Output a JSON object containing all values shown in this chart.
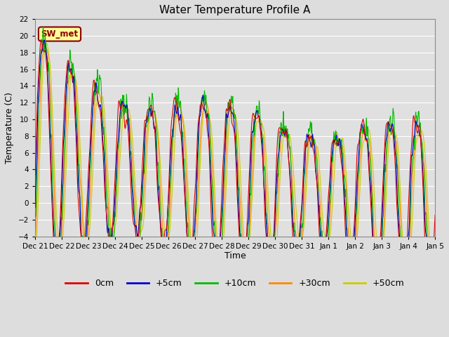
{
  "title": "Water Temperature Profile A",
  "xlabel": "Time",
  "ylabel": "Temperature (C)",
  "ylim": [
    -4,
    22
  ],
  "yticks": [
    -4,
    -2,
    0,
    2,
    4,
    6,
    8,
    10,
    12,
    14,
    16,
    18,
    20,
    22
  ],
  "legend_labels": [
    "0cm",
    "+5cm",
    "+10cm",
    "+30cm",
    "+50cm"
  ],
  "legend_colors": [
    "#dd0000",
    "#0000cc",
    "#00bb00",
    "#ff8800",
    "#cccc00"
  ],
  "annotation_text": "SW_met",
  "annotation_bg": "#ffff99",
  "annotation_border": "#8b0000",
  "line_width": 0.8,
  "tick_labels": [
    "Dec 21",
    "Dec 22",
    "Dec 23",
    "Dec 24",
    "Dec 25",
    "Dec 26",
    "Dec 27",
    "Dec 28",
    "Dec 29",
    "Dec 30",
    "Dec 31",
    "Jan 1",
    "Jan 2",
    "Jan 3",
    "Jan 4",
    "Jan 5"
  ],
  "figsize": [
    6.4,
    4.8
  ],
  "dpi": 100
}
